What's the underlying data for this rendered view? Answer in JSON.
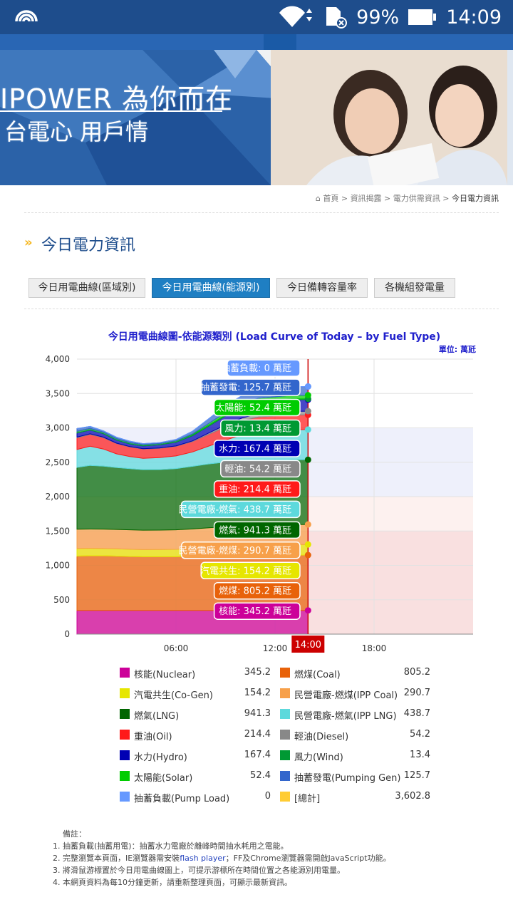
{
  "status_bar": {
    "battery": "99%",
    "time": "14:09",
    "icons": [
      "wifi-icon",
      "sd-card-icon",
      "battery-icon",
      "broadcast-icon"
    ]
  },
  "banner": {
    "line1": "IPOWER  為你而在",
    "line2": "台電心  用戶情"
  },
  "breadcrumb": [
    "首頁",
    "資訊揭露",
    "電力供需資訊",
    "今日電力資訊"
  ],
  "page_title": "今日電力資訊",
  "tabs": [
    {
      "label": "今日用電曲線(區域別)",
      "active": false
    },
    {
      "label": "今日用電曲線(能源別)",
      "active": true
    },
    {
      "label": "今日備轉容量率",
      "active": false
    },
    {
      "label": "各機組發電量",
      "active": false
    }
  ],
  "chart_data": {
    "type": "area",
    "title": "今日用電曲線圖-依能源類別 (Load Curve of Today – by Fuel Type)",
    "unit": "單位: 萬瓩",
    "x_ticks": [
      "06:00",
      "12:00",
      "18:00"
    ],
    "y_ticks": [
      "0",
      "500",
      "1,000",
      "1,500",
      "2,000",
      "2,500",
      "3,000",
      "3,500",
      "4,000"
    ],
    "ylim": [
      0,
      4000
    ],
    "xlim_hours": [
      0,
      24
    ],
    "cursor_label": "14:00",
    "cursor_hour": 14,
    "stack_order": [
      "Nuclear",
      "Coal",
      "Co-Gen",
      "IPP Coal",
      "LNG",
      "IPP LNG",
      "Oil",
      "Diesel",
      "Hydro",
      "Wind",
      "Solar",
      "Pumping Gen",
      "Pump Load"
    ],
    "series": [
      {
        "key": "Nuclear",
        "color": "#cc0099",
        "values": [
          345,
          345,
          345,
          345,
          345,
          345,
          345,
          345,
          345,
          345,
          345,
          345,
          345,
          345,
          345
        ]
      },
      {
        "key": "Coal",
        "color": "#e8620a",
        "values": [
          790,
          795,
          795,
          790,
          785,
          780,
          780,
          780,
          785,
          790,
          795,
          800,
          803,
          805,
          805
        ]
      },
      {
        "key": "Co-Gen",
        "color": "#e6e600",
        "values": [
          110,
          108,
          105,
          105,
          104,
          104,
          105,
          108,
          115,
          125,
          135,
          145,
          150,
          154,
          154
        ]
      },
      {
        "key": "IPP Coal",
        "color": "#f7a04a",
        "values": [
          280,
          280,
          282,
          282,
          283,
          283,
          283,
          284,
          285,
          286,
          287,
          288,
          289,
          290,
          291
        ]
      },
      {
        "key": "LNG",
        "color": "#006600",
        "values": [
          900,
          925,
          915,
          900,
          890,
          880,
          880,
          890,
          910,
          930,
          940,
          940,
          940,
          941,
          941
        ]
      },
      {
        "key": "IPP LNG",
        "color": "#5dd9dc",
        "values": [
          260,
          280,
          250,
          200,
          175,
          165,
          175,
          185,
          210,
          260,
          320,
          380,
          420,
          438,
          439
        ]
      },
      {
        "key": "Oil",
        "color": "#ff1a1a",
        "values": [
          170,
          170,
          165,
          150,
          140,
          135,
          135,
          140,
          150,
          170,
          190,
          205,
          210,
          214,
          214
        ]
      },
      {
        "key": "Diesel",
        "color": "#888888",
        "values": [
          10,
          10,
          8,
          5,
          5,
          5,
          5,
          5,
          10,
          20,
          30,
          40,
          50,
          54,
          54
        ]
      },
      {
        "key": "Hydro",
        "color": "#0000b3",
        "values": [
          60,
          55,
          50,
          45,
          40,
          40,
          45,
          55,
          75,
          100,
          130,
          150,
          160,
          167,
          167
        ]
      },
      {
        "key": "Wind",
        "color": "#009933",
        "values": [
          25,
          24,
          23,
          22,
          20,
          19,
          18,
          17,
          16,
          15,
          14,
          14,
          13,
          13,
          13
        ]
      },
      {
        "key": "Solar",
        "color": "#00cc00",
        "values": [
          0,
          0,
          0,
          0,
          0,
          0,
          0,
          2,
          10,
          25,
          38,
          47,
          51,
          52,
          52
        ]
      },
      {
        "key": "Pumping Gen",
        "color": "#3366cc",
        "values": [
          40,
          30,
          20,
          20,
          20,
          15,
          15,
          20,
          40,
          70,
          100,
          115,
          120,
          126,
          126
        ]
      },
      {
        "key": "Pump Load",
        "color": "#6699ff",
        "values": [
          0,
          0,
          0,
          0,
          0,
          0,
          0,
          0,
          0,
          0,
          0,
          0,
          0,
          0,
          0
        ]
      }
    ],
    "x_hours": [
      0,
      0.8,
      1.6,
      2.4,
      3.2,
      4,
      5,
      6,
      7,
      8,
      9,
      10,
      11,
      13,
      14
    ],
    "tooltips": [
      {
        "text": "抽蓄負載: 0 萬瓩",
        "color": "#6699ff",
        "y": 3875
      },
      {
        "text": "抽蓄發電: 125.7 萬瓩",
        "color": "#3366cc",
        "y": 3595
      },
      {
        "text": "太陽能: 52.4 萬瓩",
        "color": "#00cc00",
        "y": 3300
      },
      {
        "text": "風力: 13.4 萬瓩",
        "color": "#009933",
        "y": 3000
      },
      {
        "text": "水力: 167.4 萬瓩",
        "color": "#0000b3",
        "y": 2705
      },
      {
        "text": "輕油: 54.2 萬瓩",
        "color": "#888888",
        "y": 2410
      },
      {
        "text": "重油: 214.4 萬瓩",
        "color": "#ff1a1a",
        "y": 2115
      },
      {
        "text": "民營電廠-燃氣: 438.7 萬瓩",
        "color": "#5dd9dc",
        "y": 1820
      },
      {
        "text": "燃氣: 941.3 萬瓩",
        "color": "#006600",
        "y": 1520
      },
      {
        "text": "民營電廠-燃煤: 290.7 萬瓩",
        "color": "#f7a04a",
        "y": 1225
      },
      {
        "text": "汽電共生: 154.2 萬瓩",
        "color": "#e6e600",
        "y": 930
      },
      {
        "text": "燃煤: 805.2 萬瓩",
        "color": "#e8620a",
        "y": 635
      },
      {
        "text": "核能: 345.2 萬瓩",
        "color": "#cc0099",
        "y": 340
      }
    ],
    "bands": [
      {
        "from": 0,
        "to": 1500,
        "color": "#f9e0e0"
      },
      {
        "from": 1500,
        "to": 2000,
        "color": "#fdf1ef"
      },
      {
        "from": 2000,
        "to": 3000,
        "color": "#eef0fb"
      }
    ]
  },
  "legend": [
    [
      {
        "name": "核能(Nuclear)",
        "value": "345.2",
        "color": "#cc0099"
      },
      {
        "name": "燃煤(Coal)",
        "value": "805.2",
        "color": "#e8620a"
      }
    ],
    [
      {
        "name": "汽電共生(Co-Gen)",
        "value": "154.2",
        "color": "#e6e600"
      },
      {
        "name": "民營電廠-燃煤(IPP Coal)",
        "value": "290.7",
        "color": "#f7a04a"
      }
    ],
    [
      {
        "name": "燃氣(LNG)",
        "value": "941.3",
        "color": "#006600"
      },
      {
        "name": "民營電廠-燃氣(IPP LNG)",
        "value": "438.7",
        "color": "#5dd9dc"
      }
    ],
    [
      {
        "name": "重油(Oil)",
        "value": "214.4",
        "color": "#ff1a1a"
      },
      {
        "name": "輕油(Diesel)",
        "value": "54.2",
        "color": "#888888"
      }
    ],
    [
      {
        "name": "水力(Hydro)",
        "value": "167.4",
        "color": "#0000b3"
      },
      {
        "name": "風力(Wind)",
        "value": "13.4",
        "color": "#009933"
      }
    ],
    [
      {
        "name": "太陽能(Solar)",
        "value": "52.4",
        "color": "#00cc00"
      },
      {
        "name": "抽蓄發電(Pumping Gen)",
        "value": "125.7",
        "color": "#3366cc"
      }
    ],
    [
      {
        "name": "抽蓄負載(Pump Load)",
        "value": "0",
        "color": "#6699ff"
      },
      {
        "name": "[總計]",
        "value": "3,602.8",
        "color": "#ffcc33"
      }
    ]
  ],
  "notes": {
    "title": "備註：",
    "items": [
      "1. 抽蓄負載(抽蓄用電)：抽蓄水力電廠於離峰時間抽水耗用之電能。",
      "2. 完整瀏覽本頁面，IE瀏覽器需安裝",
      "3. 將滑鼠游標置於今日用電曲線圖上，可提示游標所在時間位置之各能源別用電量。",
      "4. 本網頁資料為每10分鐘更新，請重新整理頁面，可顯示最新資訊。"
    ],
    "item2_link": "flash player",
    "item2_tail": "；FF及Chrome瀏覽器需開啟JavaScript功能。"
  }
}
